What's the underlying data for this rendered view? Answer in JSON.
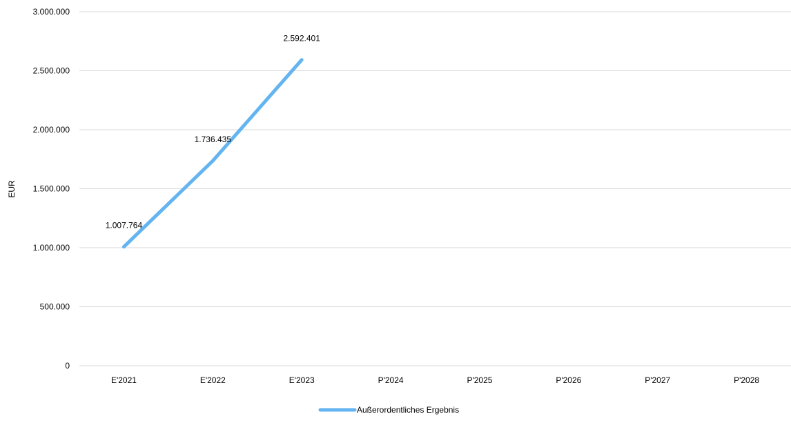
{
  "chart_data": {
    "type": "line",
    "categories": [
      "E'2021",
      "E'2022",
      "E'2023",
      "P'2024",
      "P'2025",
      "P'2026",
      "P'2027",
      "P'2028"
    ],
    "series": [
      {
        "name": "Außerordentliches Ergebnis",
        "values": [
          1007764,
          1736435,
          2592401,
          null,
          null,
          null,
          null,
          null
        ],
        "value_labels": [
          "1.007.764",
          "1.736.435",
          "2.592.401",
          null,
          null,
          null,
          null,
          null
        ],
        "color": "#63B4F0"
      }
    ],
    "ylabel": "EUR",
    "xlabel": "",
    "ylim": [
      0,
      3000000
    ],
    "yticks": [
      0,
      500000,
      1000000,
      1500000,
      2000000,
      2500000,
      3000000
    ],
    "ytick_labels": [
      "0",
      "500.000",
      "1.000.000",
      "1.500.000",
      "2.000.000",
      "2.500.000",
      "3.000.000"
    ],
    "grid": true,
    "gridline_color": "#D9D9D9",
    "legend_position": "bottom"
  }
}
